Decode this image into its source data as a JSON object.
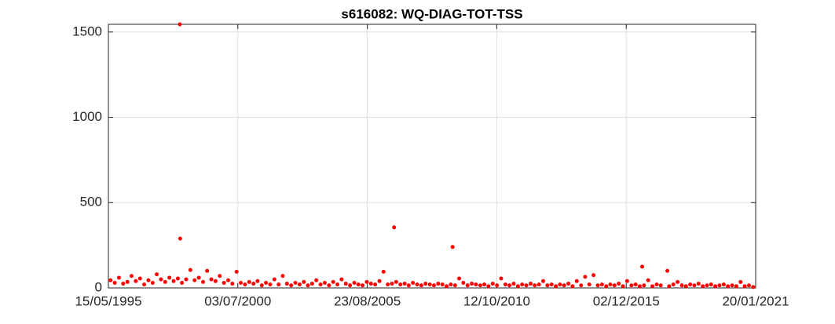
{
  "chart_data": {
    "type": "scatter",
    "title": "s616082: WQ-DIAG-TOT-TSS",
    "color": "#ff0000",
    "grid": true,
    "xlim": [
      "1995-05-15",
      "2021-01-20"
    ],
    "xticks": [
      {
        "value": "1995-05-15",
        "label": "15/05/1995"
      },
      {
        "value": "2000-07-03",
        "label": "03/07/2000"
      },
      {
        "value": "2005-08-23",
        "label": "23/08/2005"
      },
      {
        "value": "2010-10-12",
        "label": "12/10/2010"
      },
      {
        "value": "2015-12-02",
        "label": "02/12/2015"
      },
      {
        "value": "2021-01-20",
        "label": "20/01/2021"
      }
    ],
    "ylim": [
      0,
      1545
    ],
    "yticks": [
      0,
      500,
      1000,
      1500
    ],
    "x": [
      "1995-06-15",
      "1995-08-15",
      "1995-10-15",
      "1995-12-15",
      "1996-02-15",
      "1996-04-15",
      "1996-06-15",
      "1996-08-15",
      "1996-10-15",
      "1996-12-15",
      "1997-02-15",
      "1997-04-15",
      "1997-06-15",
      "1997-08-15",
      "1997-10-15",
      "1997-12-15",
      "1998-02-15",
      "1998-03-15",
      "1998-03-20",
      "1998-04-15",
      "1998-06-15",
      "1998-08-15",
      "1998-10-15",
      "1998-12-15",
      "1999-02-15",
      "1999-04-15",
      "1999-06-15",
      "1999-08-15",
      "1999-10-15",
      "1999-12-15",
      "2000-02-15",
      "2000-04-15",
      "2000-06-15",
      "2000-08-15",
      "2000-10-15",
      "2000-12-15",
      "2001-02-15",
      "2001-04-15",
      "2001-06-15",
      "2001-08-15",
      "2001-10-15",
      "2001-12-15",
      "2002-02-15",
      "2002-04-15",
      "2002-06-15",
      "2002-08-15",
      "2002-10-15",
      "2002-12-15",
      "2003-02-15",
      "2003-04-15",
      "2003-06-15",
      "2003-08-15",
      "2003-10-15",
      "2003-12-15",
      "2004-02-15",
      "2004-04-15",
      "2004-06-15",
      "2004-08-15",
      "2004-10-15",
      "2004-12-15",
      "2005-02-15",
      "2005-04-15",
      "2005-06-15",
      "2005-08-15",
      "2005-10-15",
      "2005-12-15",
      "2006-02-15",
      "2006-04-15",
      "2006-06-15",
      "2006-08-15",
      "2006-09-15",
      "2006-10-15",
      "2006-12-15",
      "2007-02-15",
      "2007-04-15",
      "2007-06-15",
      "2007-08-15",
      "2007-10-15",
      "2007-12-15",
      "2008-02-15",
      "2008-04-15",
      "2008-06-15",
      "2008-08-15",
      "2008-10-15",
      "2008-12-15",
      "2009-01-10",
      "2009-02-15",
      "2009-04-15",
      "2009-06-15",
      "2009-08-15",
      "2009-10-15",
      "2009-12-15",
      "2010-02-15",
      "2010-04-15",
      "2010-06-15",
      "2010-08-15",
      "2010-10-15",
      "2010-12-15",
      "2011-02-15",
      "2011-04-15",
      "2011-06-15",
      "2011-08-15",
      "2011-10-15",
      "2011-12-15",
      "2012-02-15",
      "2012-04-15",
      "2012-06-15",
      "2012-08-15",
      "2012-10-15",
      "2012-12-15",
      "2013-02-15",
      "2013-04-15",
      "2013-06-15",
      "2013-08-15",
      "2013-10-15",
      "2013-12-15",
      "2014-02-15",
      "2014-04-15",
      "2014-06-15",
      "2014-08-15",
      "2014-10-15",
      "2014-12-15",
      "2015-02-15",
      "2015-04-15",
      "2015-06-15",
      "2015-08-15",
      "2015-10-15",
      "2015-12-15",
      "2016-02-15",
      "2016-04-15",
      "2016-06-15",
      "2016-07-20",
      "2016-08-15",
      "2016-10-15",
      "2016-12-15",
      "2017-02-15",
      "2017-04-15",
      "2017-07-20",
      "2017-08-15",
      "2017-10-15",
      "2017-12-15",
      "2018-02-15",
      "2018-04-15",
      "2018-06-15",
      "2018-08-15",
      "2018-10-15",
      "2018-12-15",
      "2019-02-15",
      "2019-04-15",
      "2019-06-15",
      "2019-08-15",
      "2019-10-15",
      "2019-12-15",
      "2020-02-15",
      "2020-04-15",
      "2020-06-15",
      "2020-08-15",
      "2020-10-15",
      "2020-12-15"
    ],
    "values": [
      45,
      30,
      60,
      25,
      35,
      70,
      40,
      55,
      20,
      45,
      30,
      80,
      50,
      35,
      60,
      40,
      55,
      1545,
      289,
      30,
      50,
      105,
      45,
      60,
      35,
      100,
      50,
      40,
      70,
      30,
      45,
      25,
      95,
      30,
      20,
      35,
      25,
      40,
      15,
      30,
      20,
      50,
      20,
      70,
      25,
      15,
      30,
      20,
      35,
      15,
      25,
      45,
      20,
      30,
      15,
      35,
      20,
      50,
      25,
      15,
      30,
      20,
      15,
      35,
      25,
      20,
      40,
      95,
      20,
      25,
      355,
      35,
      20,
      25,
      15,
      30,
      20,
      15,
      25,
      20,
      15,
      25,
      20,
      10,
      20,
      240,
      15,
      55,
      30,
      15,
      25,
      20,
      15,
      20,
      10,
      25,
      15,
      55,
      20,
      15,
      25,
      10,
      20,
      15,
      25,
      15,
      20,
      40,
      15,
      20,
      10,
      20,
      15,
      25,
      10,
      40,
      15,
      65,
      20,
      75,
      15,
      20,
      10,
      20,
      15,
      25,
      10,
      40,
      15,
      20,
      10,
      125,
      15,
      45,
      10,
      20,
      15,
      100,
      10,
      20,
      35,
      15,
      10,
      20,
      15,
      25,
      10,
      15,
      20,
      10,
      15,
      20,
      10,
      15,
      10,
      35,
      10,
      15,
      5
    ]
  }
}
